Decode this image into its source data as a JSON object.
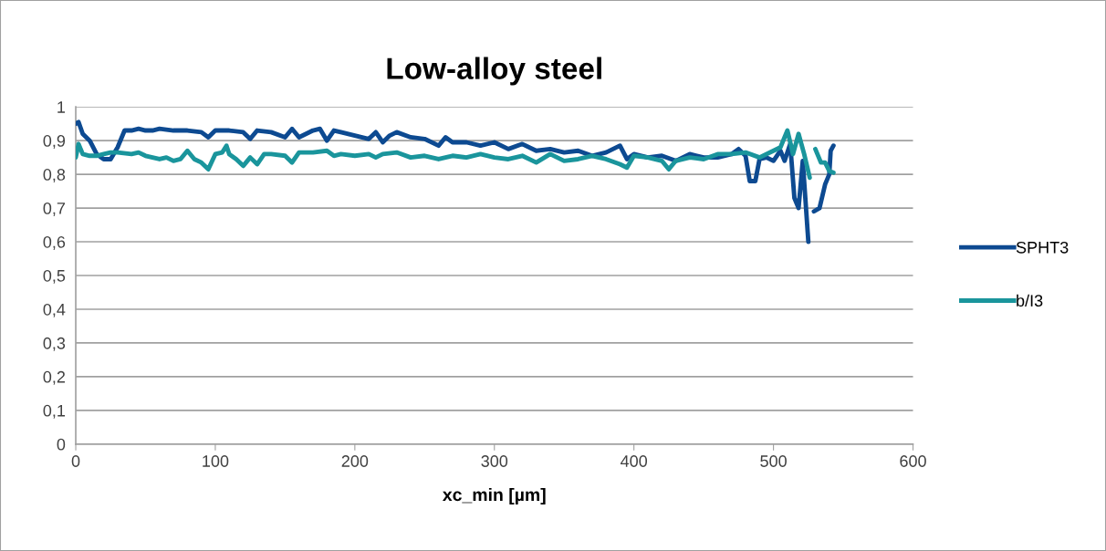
{
  "chart_data": {
    "type": "line",
    "title": "Low-alloy steel",
    "xlabel": "xc_min [µm]",
    "xlim": [
      0,
      600
    ],
    "xticks": [
      0,
      100,
      200,
      300,
      400,
      500,
      600
    ],
    "ylim": [
      0,
      1
    ],
    "yticks": [
      0,
      {
        "value": 0.1,
        "label": "0,1"
      },
      {
        "value": 0.2,
        "label": "0,2"
      },
      {
        "value": 0.3,
        "label": "0,3"
      },
      {
        "value": 0.4,
        "label": "0,4"
      },
      {
        "value": 0.5,
        "label": "0,5"
      },
      {
        "value": 0.6,
        "label": "0,6"
      },
      {
        "value": 0.7,
        "label": "0,7"
      },
      {
        "value": 0.8,
        "label": "0,8"
      },
      {
        "value": 0.9,
        "label": "0,9"
      },
      1
    ],
    "grid": "y",
    "legend": "right",
    "line_style": "solid",
    "marker": "none",
    "series": [
      {
        "name": "SPHT3",
        "color": "#0d4a91",
        "x": [
          0,
          2,
          5,
          10,
          15,
          20,
          25,
          30,
          35,
          40,
          45,
          50,
          55,
          60,
          70,
          80,
          90,
          95,
          100,
          110,
          120,
          125,
          130,
          140,
          150,
          155,
          160,
          170,
          175,
          180,
          185,
          190,
          200,
          210,
          215,
          220,
          225,
          230,
          240,
          250,
          260,
          265,
          270,
          280,
          290,
          300,
          310,
          320,
          330,
          340,
          350,
          360,
          370,
          380,
          390,
          395,
          400,
          410,
          420,
          430,
          440,
          450,
          460,
          470,
          475,
          480,
          483,
          487,
          490,
          495,
          500,
          505,
          508,
          512,
          515,
          518,
          521,
          525,
          527,
          529,
          533,
          537,
          540,
          541,
          543
        ],
        "values": [
          0.95,
          0.955,
          0.92,
          0.9,
          0.86,
          0.845,
          0.845,
          0.88,
          0.93,
          0.93,
          0.935,
          0.93,
          0.93,
          0.935,
          0.93,
          0.93,
          0.925,
          0.91,
          0.93,
          0.93,
          0.925,
          0.905,
          0.93,
          0.925,
          0.91,
          0.935,
          0.91,
          0.93,
          0.935,
          0.9,
          0.93,
          0.925,
          0.915,
          0.905,
          0.925,
          0.895,
          0.915,
          0.925,
          0.91,
          0.905,
          0.885,
          0.91,
          0.895,
          0.895,
          0.885,
          0.895,
          0.875,
          0.89,
          0.87,
          0.875,
          0.865,
          0.87,
          0.855,
          0.865,
          0.885,
          0.845,
          0.86,
          0.85,
          0.855,
          0.84,
          0.86,
          0.85,
          0.85,
          0.86,
          0.875,
          0.855,
          0.78,
          0.78,
          0.845,
          0.85,
          0.84,
          0.87,
          0.84,
          0.89,
          0.73,
          0.7,
          0.84,
          0.6,
          null,
          0.69,
          0.7,
          0.77,
          0.8,
          0.87,
          0.885
        ]
      },
      {
        "name": "b/I3",
        "color": "#1a959c",
        "x": [
          0,
          2,
          5,
          10,
          15,
          20,
          25,
          30,
          40,
          45,
          50,
          55,
          60,
          65,
          70,
          75,
          80,
          85,
          90,
          95,
          100,
          105,
          108,
          110,
          115,
          120,
          125,
          130,
          135,
          140,
          150,
          155,
          160,
          170,
          180,
          185,
          190,
          200,
          210,
          215,
          220,
          230,
          240,
          250,
          260,
          270,
          280,
          290,
          300,
          310,
          320,
          330,
          340,
          350,
          360,
          370,
          380,
          390,
          395,
          400,
          410,
          420,
          425,
          430,
          440,
          450,
          460,
          470,
          480,
          490,
          500,
          505,
          510,
          514,
          518,
          522,
          526,
          528,
          530,
          534,
          537,
          540,
          543
        ],
        "values": [
          0.85,
          0.89,
          0.86,
          0.855,
          0.855,
          0.86,
          0.865,
          0.865,
          0.86,
          0.865,
          0.855,
          0.85,
          0.845,
          0.85,
          0.84,
          0.845,
          0.87,
          0.845,
          0.835,
          0.815,
          0.86,
          0.865,
          0.885,
          0.86,
          0.845,
          0.825,
          0.85,
          0.83,
          0.86,
          0.86,
          0.855,
          0.835,
          0.865,
          0.865,
          0.87,
          0.855,
          0.86,
          0.855,
          0.86,
          0.85,
          0.86,
          0.865,
          0.85,
          0.855,
          0.845,
          0.855,
          0.85,
          0.86,
          0.85,
          0.845,
          0.855,
          0.835,
          0.86,
          0.84,
          0.845,
          0.855,
          0.845,
          0.83,
          0.82,
          0.855,
          0.85,
          0.84,
          0.815,
          0.84,
          0.85,
          0.845,
          0.86,
          0.86,
          0.865,
          0.85,
          0.87,
          0.88,
          0.93,
          0.86,
          0.92,
          0.86,
          0.79,
          null,
          0.875,
          0.835,
          0.835,
          0.81,
          0.805
        ]
      }
    ]
  }
}
